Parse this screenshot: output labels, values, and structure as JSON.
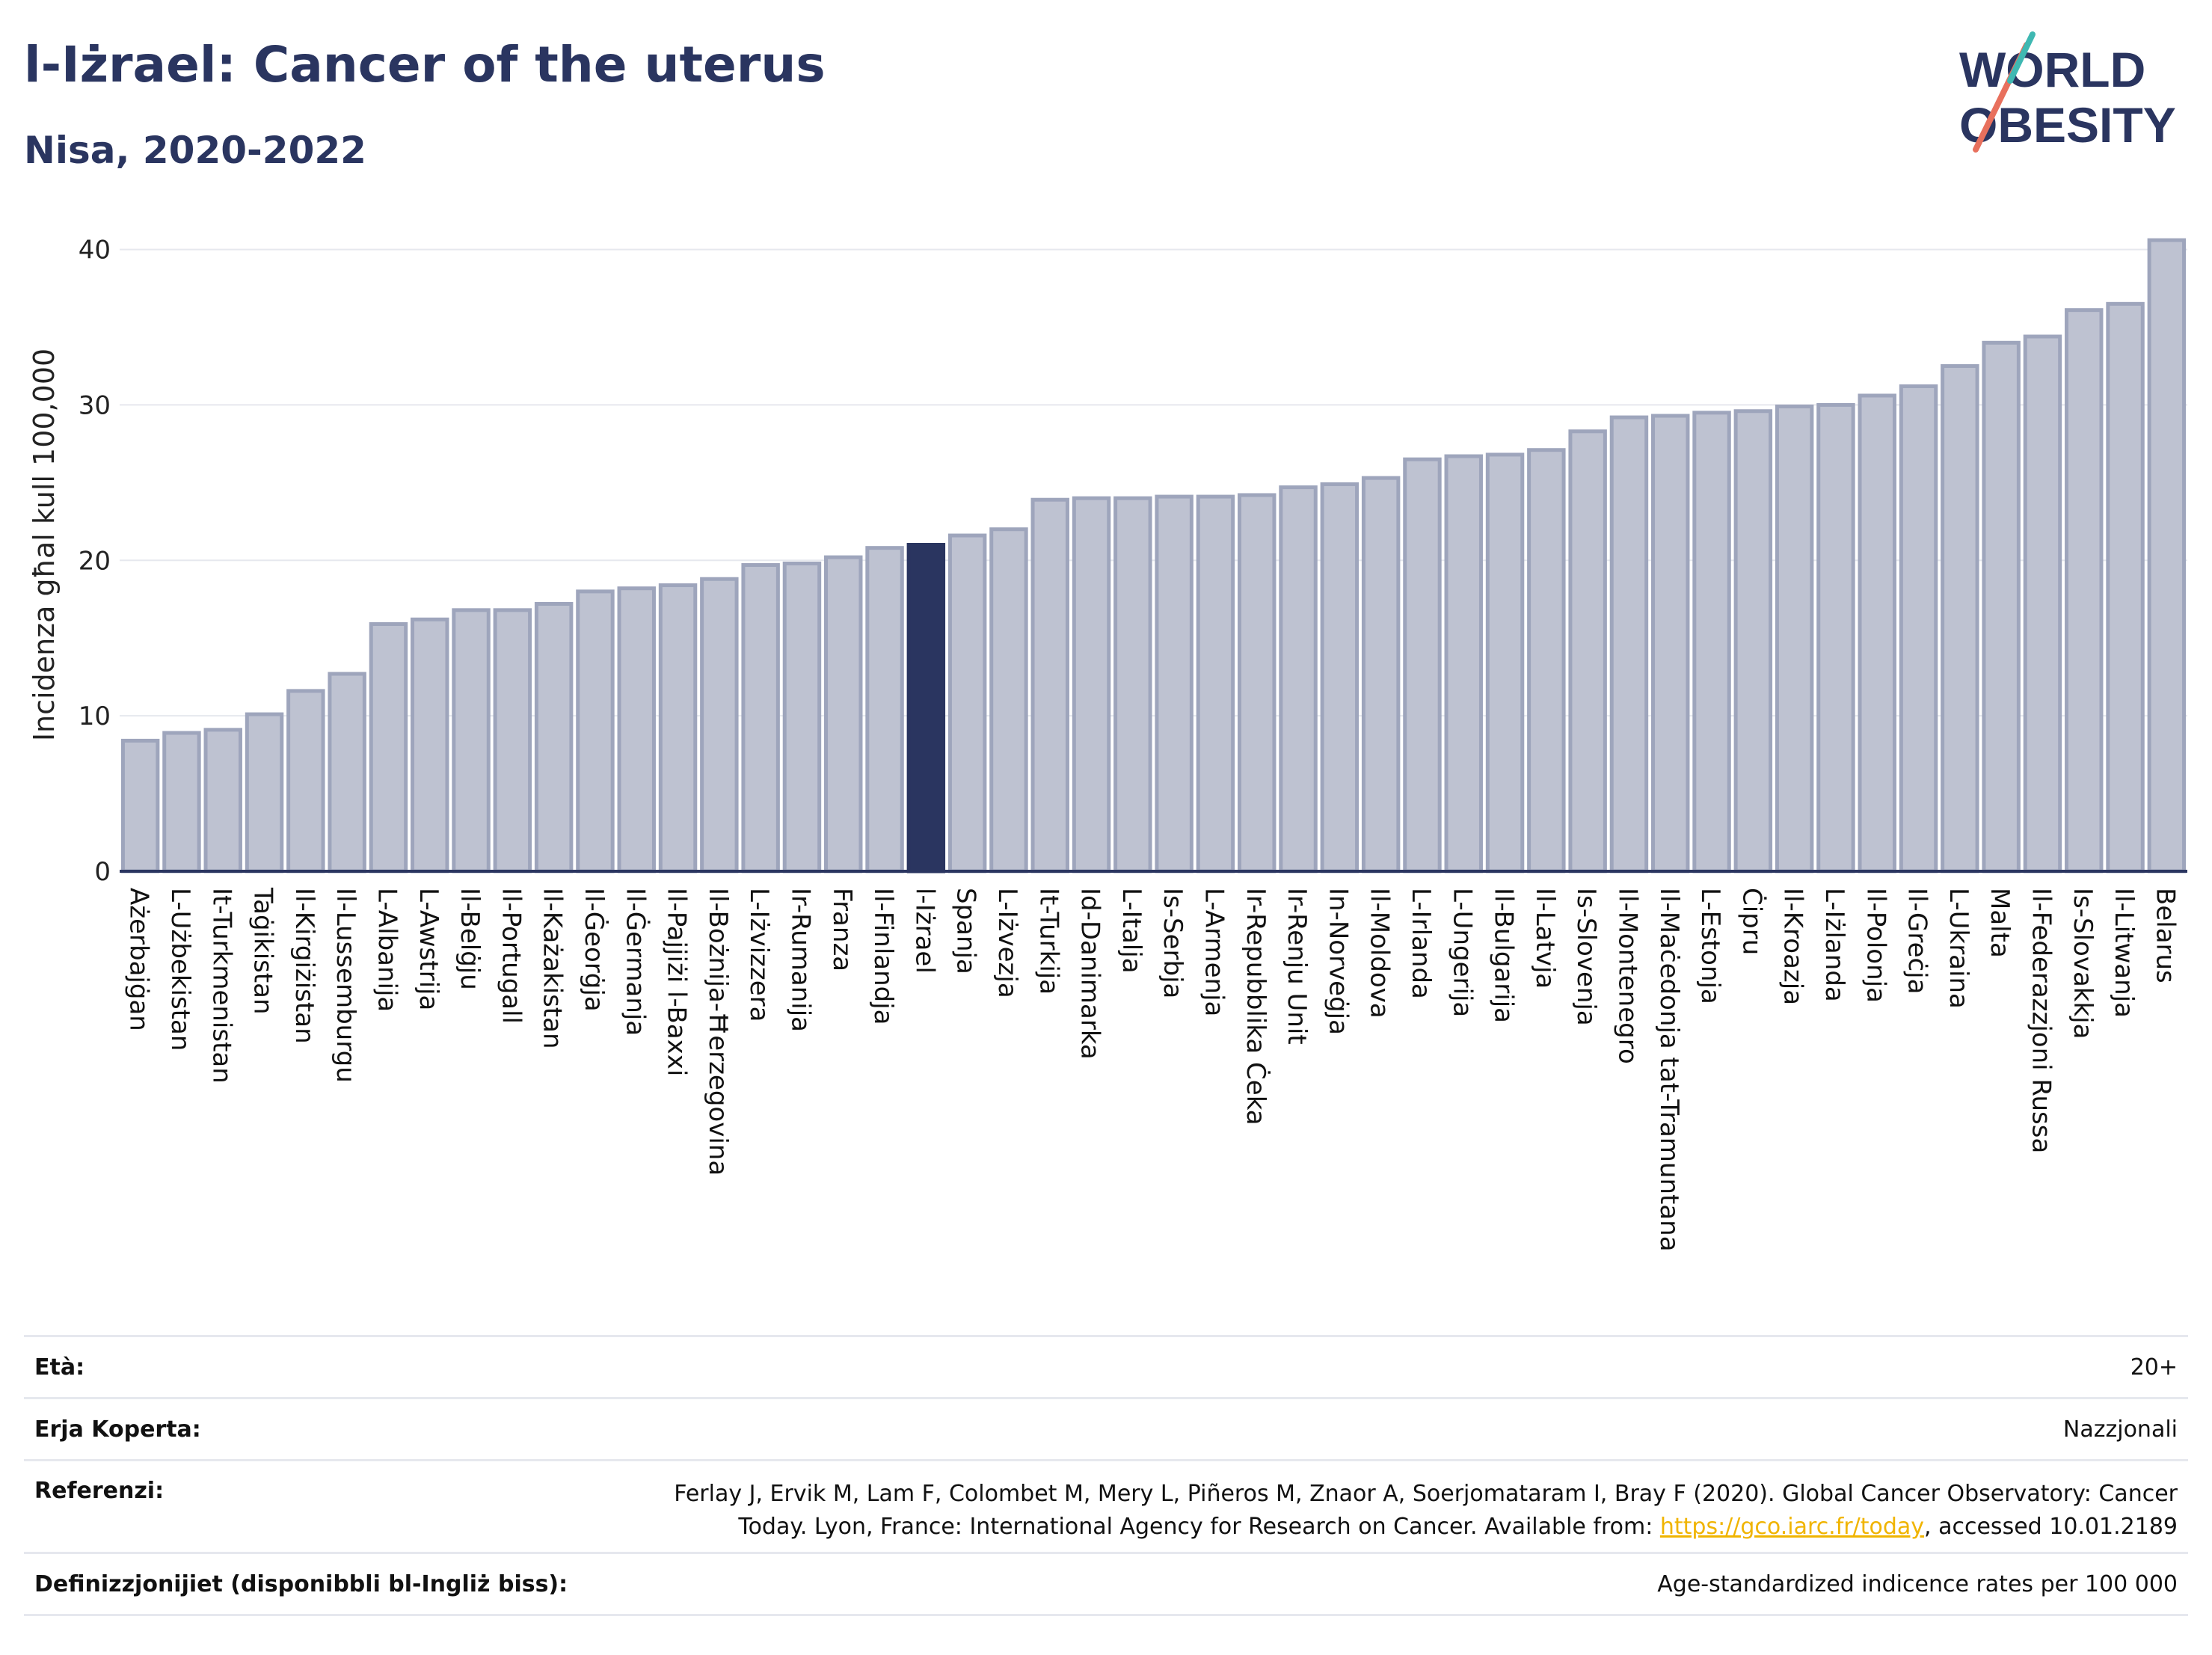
{
  "header": {
    "title": "l-Iżrael: Cancer of the uterus",
    "subtitle": "Nisa, 2020-2022"
  },
  "logo": {
    "line1": "WORLD",
    "line2": "OBESITY"
  },
  "colors": {
    "bar": "#bec2d1",
    "bar_border": "#9ea5bc",
    "highlight": "#2a3560",
    "grid": "#e6e8ee",
    "text": "#2a3560"
  },
  "chart_data": {
    "type": "bar",
    "ylabel": "Incidenza għal kull 100,000",
    "xlabel": "",
    "ylim": [
      0,
      42
    ],
    "yticks": [
      0,
      10,
      20,
      30,
      40
    ],
    "grid": true,
    "highlight": "l-Iżrael",
    "categories": [
      "Ażerbajġan",
      "L-Użbekistan",
      "It-Turkmenistan",
      "Taġikistan",
      "Il-Kirgiżistan",
      "Il-Lussemburgu",
      "L-Albanija",
      "L-Awstrija",
      "Il-Belġju",
      "Il-Portugall",
      "Il-Każakistan",
      "Il-Ġeorġja",
      "Il-Ġermanja",
      "Il-Pajjiżi l-Baxxi",
      "Il-Bożnija-Ħerzegovina",
      "L-Iżvizzera",
      "Ir-Rumanija",
      "Franza",
      "Il-Finlandja",
      "l-Iżrael",
      "Spanja",
      "L-Iżvezja",
      "It-Turkija",
      "Id-Danimarka",
      "L-Italja",
      "Is-Serbja",
      "L-Armenja",
      "Ir-Repubblika Ċeka",
      "Ir-Renju Unit",
      "In-Norveġja",
      "Il-Moldova",
      "L-Irlanda",
      "L-Ungerija",
      "Il-Bulgarija",
      "Il-Latvja",
      "Is-Slovenja",
      "Il-Montenegro",
      "Il-Maċedonja tat-Tramuntana",
      "L-Estonja",
      "Ċipru",
      "Il-Kroazja",
      "L-Iżlanda",
      "Il-Polonja",
      "Il-Greċja",
      "L-Ukraina",
      "Malta",
      "Il-Federazzjoni Russa",
      "Is-Slovakkja",
      "Il-Litwanja",
      "Belarus"
    ],
    "values": [
      8.4,
      8.9,
      9.1,
      10.1,
      11.6,
      12.7,
      15.9,
      16.2,
      16.8,
      16.8,
      17.2,
      18.0,
      18.2,
      18.4,
      18.8,
      19.7,
      19.8,
      20.2,
      20.8,
      21.0,
      21.6,
      22.0,
      23.9,
      24.0,
      24.0,
      24.1,
      24.1,
      24.2,
      24.7,
      24.9,
      25.3,
      26.5,
      26.7,
      26.8,
      27.1,
      28.3,
      29.2,
      29.3,
      29.5,
      29.6,
      29.9,
      30.0,
      30.6,
      31.2,
      32.5,
      34.0,
      34.4,
      36.1,
      36.5,
      40.6
    ]
  },
  "info": {
    "age_label": "Età:",
    "age_value": "20+",
    "area_label": "Erja Koperta:",
    "area_value": "Nazzjonali",
    "ref_label": "Referenzi:",
    "ref_line1": "Ferlay J, Ervik M, Lam F, Colombet M, Mery L, Piñeros M, Znaor A, Soerjomataram I, Bray F (2020). Global Cancer Observatory: Cancer",
    "ref_line2_pre": "Today. Lyon, France: International Agency for Research on Cancer. Available from: ",
    "ref_link": "https://gco.iarc.fr/today",
    "ref_line2_post": ", accessed 10.01.2189",
    "def_label": "Definizzjonijiet (disponibbli bl-Ingliż biss):",
    "def_value": "Age-standardized indicence rates per 100 000"
  }
}
